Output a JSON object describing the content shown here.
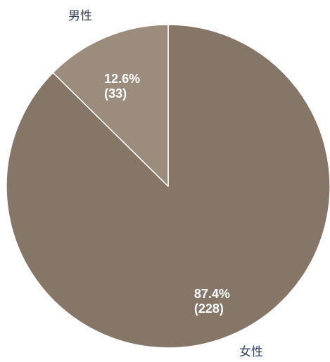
{
  "chart_data": {
    "type": "pie",
    "categories": [
      "男性",
      "女性"
    ],
    "values": [
      33,
      228
    ],
    "percents": [
      12.6,
      87.4
    ],
    "colors": [
      "#9c8c7e",
      "#857668"
    ],
    "separator_color": "#ffffff",
    "category_label_color": "#34435e",
    "data_label_color": "#ffffff"
  }
}
